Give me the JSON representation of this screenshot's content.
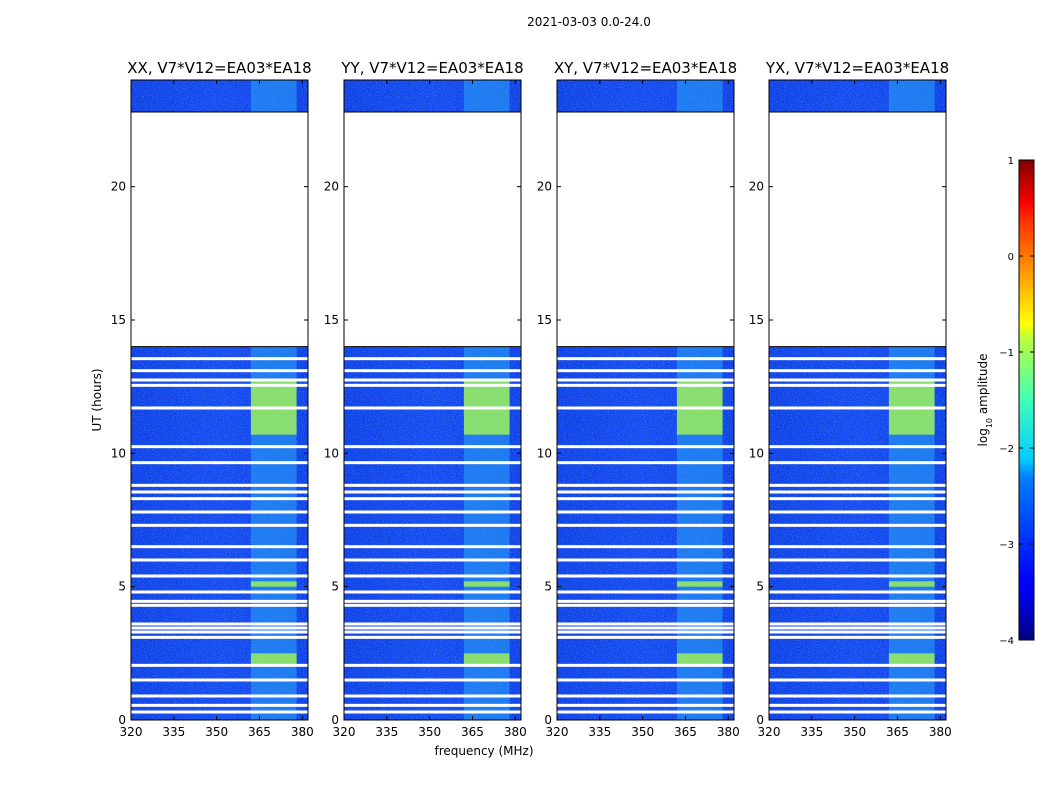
{
  "chart_data": {
    "type": "heatmap",
    "suptitle": "2021-03-03 0.0-24.0",
    "xlabel": "frequency (MHz)",
    "ylabel": "UT (hours)",
    "xlim": [
      320,
      382
    ],
    "ylim": [
      0,
      24
    ],
    "xticks": [
      320,
      335,
      350,
      365,
      380
    ],
    "yticks": [
      0,
      5,
      10,
      15,
      20
    ],
    "colorbar": {
      "label": "log10 amplitude",
      "label_main": "log",
      "label_sub": "10",
      "label_rest": " amplitude",
      "range": [
        -4,
        1
      ],
      "ticks": [
        -4,
        -3,
        -2,
        -1,
        0,
        1
      ],
      "tick_labels": [
        "−4",
        "−3",
        "−2",
        "−1",
        "0",
        "1"
      ]
    },
    "panels": [
      {
        "title": "XX, V7*V12=EA03*EA18",
        "pol": "XX"
      },
      {
        "title": "YY, V7*V12=EA03*EA18",
        "pol": "YY"
      },
      {
        "title": "XY, V7*V12=EA03*EA18",
        "pol": "XY"
      },
      {
        "title": "YX, V7*V12=EA03*EA18",
        "pol": "YX"
      }
    ],
    "no_data_ranges_hours": [
      [
        14.0,
        22.8
      ]
    ],
    "flagged_rows_hours": [
      0.3,
      0.55,
      0.9,
      1.5,
      2.05,
      3.1,
      3.3,
      3.45,
      3.6,
      4.3,
      4.45,
      4.8,
      5.4,
      6.0,
      6.5,
      7.3,
      7.8,
      8.3,
      8.55,
      8.8,
      9.65,
      10.25,
      11.7,
      12.55,
      12.75,
      13.1,
      13.55
    ],
    "bright_band_freq_range_mhz": [
      362,
      378
    ],
    "strong_signal_hours": [
      [
        2.1,
        2.5
      ],
      [
        5.0,
        5.2
      ],
      [
        10.7,
        12.8
      ]
    ]
  }
}
